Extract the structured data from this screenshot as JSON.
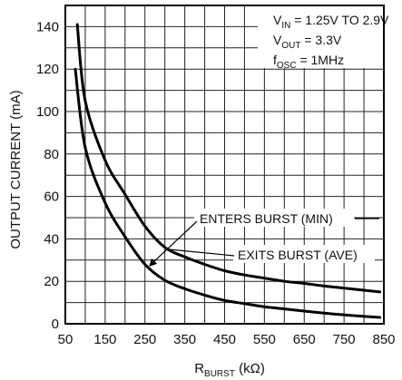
{
  "chart_data": {
    "type": "line",
    "xlabel": {
      "main": "R",
      "sub": "BURST",
      "unit": " (kΩ)"
    },
    "ylabel": "OUTPUT CURRENT (mA)",
    "xlim": [
      50,
      850
    ],
    "ylim": [
      0,
      150
    ],
    "x_ticks": [
      50,
      150,
      250,
      350,
      450,
      550,
      650,
      750,
      850
    ],
    "x_tick_labels": [
      "50",
      "150",
      "250",
      "350",
      "450",
      "550",
      "650",
      "750",
      "850"
    ],
    "y_ticks": [
      0,
      20,
      40,
      60,
      80,
      100,
      120,
      140
    ],
    "y_tick_labels": [
      "0",
      "20",
      "40",
      "60",
      "80",
      "100",
      "120",
      "140"
    ],
    "x_grid_step": 50,
    "y_grid_step": 10,
    "grid": true,
    "conditions": [
      {
        "main": "V",
        "sub": "IN",
        "rest": " = 1.25V TO 2.9V"
      },
      {
        "main": "V",
        "sub": "OUT",
        "rest": " = 3.3V"
      },
      {
        "main": "f",
        "sub": "OSC",
        "rest": " = 1MHz"
      }
    ],
    "series": [
      {
        "name": "EXITS BURST (AVE)",
        "x": [
          80,
          100,
          150,
          200,
          250,
          300,
          350,
          400,
          450,
          500,
          550,
          600,
          650,
          700,
          750,
          800,
          840
        ],
        "y": [
          141,
          105,
          77,
          61,
          46,
          36,
          31.5,
          28,
          25,
          23,
          21.5,
          20,
          19,
          17.8,
          16.8,
          15.8,
          15
        ]
      },
      {
        "name": "ENTERS BURST (MIN)",
        "x": [
          75,
          100,
          150,
          200,
          250,
          300,
          350,
          400,
          450,
          500,
          550,
          600,
          650,
          700,
          750,
          800,
          840
        ],
        "y": [
          120,
          83,
          57,
          41,
          28,
          20.5,
          16.5,
          13.5,
          11,
          9.5,
          8,
          7,
          6,
          5,
          4.2,
          3.5,
          3
        ]
      }
    ],
    "annotations": [
      {
        "text": "ENTERS BURST (MIN)",
        "target_x": 260,
        "target_y": 27
      },
      {
        "text": "EXITS BURST (AVE)",
        "target_x": 305,
        "target_y": 36
      }
    ]
  }
}
